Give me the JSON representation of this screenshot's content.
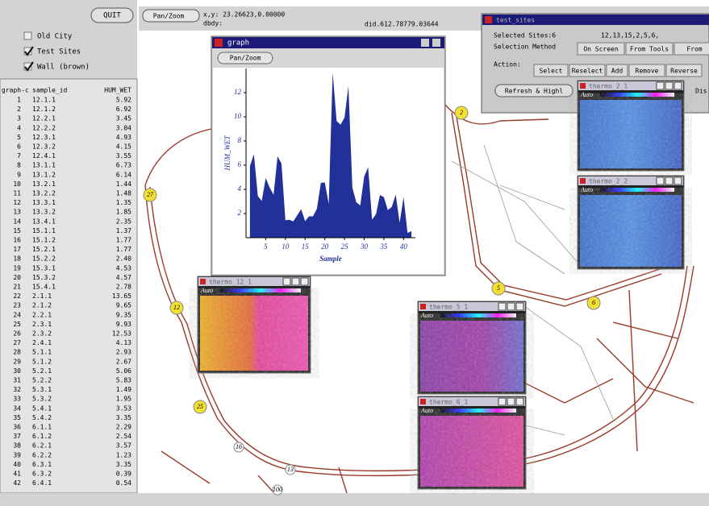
{
  "left_panel": {
    "quit": "QUIT",
    "layers": [
      "Old City",
      "Test Sites",
      "Wall (brown)"
    ],
    "checked": [
      false,
      true,
      true
    ],
    "table": {
      "header": [
        "graph-c",
        "sample_id",
        "HUM_WET"
      ],
      "rows": [
        [
          "1",
          "12.1.1",
          "5.92"
        ],
        [
          "2",
          "12.1.2",
          "6.92"
        ],
        [
          "3",
          "12.2.1",
          "3.45"
        ],
        [
          "4",
          "12.2.2",
          "3.04"
        ],
        [
          "5",
          "12.3.1",
          "4.93"
        ],
        [
          "6",
          "12.3.2",
          "4.15"
        ],
        [
          "7",
          "12.4.1",
          "3.55"
        ],
        [
          "8",
          "13.1.1",
          "6.73"
        ],
        [
          "9",
          "13.1.2",
          "6.14"
        ],
        [
          "10",
          "13.2.1",
          "1.44"
        ],
        [
          "11",
          "13.2.2",
          "1.48"
        ],
        [
          "12",
          "13.3.1",
          "1.35"
        ],
        [
          "13",
          "13.3.2",
          "1.85"
        ],
        [
          "14",
          "13.4.1",
          "2.35"
        ],
        [
          "15",
          "15.1.1",
          "1.37"
        ],
        [
          "16",
          "15.1.2",
          "1.77"
        ],
        [
          "17",
          "15.2.1",
          "1.77"
        ],
        [
          "18",
          "15.2.2",
          "2.40"
        ],
        [
          "19",
          "15.3.1",
          "4.53"
        ],
        [
          "20",
          "15.3.2",
          "4.57"
        ],
        [
          "21",
          "15.4.1",
          "2.78"
        ],
        [
          "22",
          "2.1.1",
          "13.65"
        ],
        [
          "23",
          "2.1.2",
          "9.65"
        ],
        [
          "24",
          "2.2.1",
          "9.35"
        ],
        [
          "25",
          "2.3.1",
          "9.93"
        ],
        [
          "26",
          "2.3.2",
          "12.53"
        ],
        [
          "27",
          "2.4.1",
          "4.13"
        ],
        [
          "28",
          "5.1.1",
          "2.93"
        ],
        [
          "29",
          "5.1.2",
          "2.67"
        ],
        [
          "30",
          "5.2.1",
          "5.06"
        ],
        [
          "31",
          "5.2.2",
          "5.83"
        ],
        [
          "32",
          "5.3.1",
          "1.49"
        ],
        [
          "33",
          "5.3.2",
          "1.95"
        ],
        [
          "34",
          "5.4.1",
          "3.53"
        ],
        [
          "35",
          "5.4.2",
          "3.35"
        ],
        [
          "36",
          "6.1.1",
          "2.29"
        ],
        [
          "37",
          "6.1.2",
          "2.54"
        ],
        [
          "38",
          "6.2.1",
          "3.57"
        ],
        [
          "39",
          "6.2.2",
          "1.23"
        ],
        [
          "40",
          "6.3.1",
          "3.35"
        ],
        [
          "41",
          "6.3.2",
          "0.39"
        ],
        [
          "42",
          "6.4.1",
          "0.54"
        ]
      ]
    }
  },
  "toolbar": {
    "mode": "Pan/Zoom",
    "xy": "x,y: 23.26623,0.00000",
    "dbdy": "dbdy:",
    "did": "did.612.78779.03644"
  },
  "graph_window": {
    "title": "graph",
    "button": "Pan/Zoom"
  },
  "chart_data": {
    "type": "area",
    "x_label": "Sample",
    "y_label": "HUM_WET",
    "color": "#22309a",
    "x": [
      1,
      2,
      3,
      4,
      5,
      6,
      7,
      8,
      9,
      10,
      11,
      12,
      13,
      14,
      15,
      16,
      17,
      18,
      19,
      20,
      21,
      22,
      23,
      24,
      25,
      26,
      27,
      28,
      29,
      30,
      31,
      32,
      33,
      34,
      35,
      36,
      37,
      38,
      39,
      40,
      41,
      42
    ],
    "values": [
      5.92,
      6.92,
      3.45,
      3.04,
      4.93,
      4.15,
      3.55,
      6.73,
      6.14,
      1.44,
      1.48,
      1.35,
      1.85,
      2.35,
      1.37,
      1.77,
      1.77,
      2.4,
      4.53,
      4.57,
      2.78,
      13.65,
      9.65,
      9.35,
      9.93,
      12.53,
      4.13,
      2.93,
      2.67,
      5.06,
      5.83,
      1.49,
      1.95,
      3.53,
      3.35,
      2.29,
      2.54,
      3.57,
      1.23,
      3.35,
      0.39,
      0.54
    ],
    "xlim": [
      0,
      43
    ],
    "ylim": [
      0,
      14
    ],
    "xticks": [
      5,
      10,
      15,
      20,
      25,
      30,
      35,
      40
    ],
    "yticks": [
      2,
      4,
      6,
      8,
      10,
      12
    ]
  },
  "select_window": {
    "title": "test_sites",
    "selected": "Selected Sites:6",
    "sites": "12,13,15,2,5,6,",
    "method_label": "Selection Method",
    "methods": [
      "On Screen",
      "From Tools",
      "From"
    ],
    "action_label": "Action:",
    "actions": [
      "Select",
      "Reselect",
      "Add",
      "Remove",
      "Reverse"
    ],
    "refresh": "Refresh & Highl",
    "display": "Dis"
  },
  "thermal_windows": [
    {
      "title": "thermo_2_1",
      "label": "Auto",
      "palette": "blue"
    },
    {
      "title": "thermo_2_2",
      "label": "Auto",
      "palette": "blue"
    },
    {
      "title": "thermo_12_1",
      "label": "Auto",
      "palette": "hot"
    },
    {
      "title": "thermo_5_1",
      "label": "Auto",
      "palette": "purple"
    },
    {
      "title": "thermo_6_1",
      "label": "Auto",
      "palette": "pink"
    }
  ],
  "map_labels": [
    "2",
    "27",
    "12",
    "5",
    "6",
    "25",
    "16",
    "13",
    "100"
  ]
}
